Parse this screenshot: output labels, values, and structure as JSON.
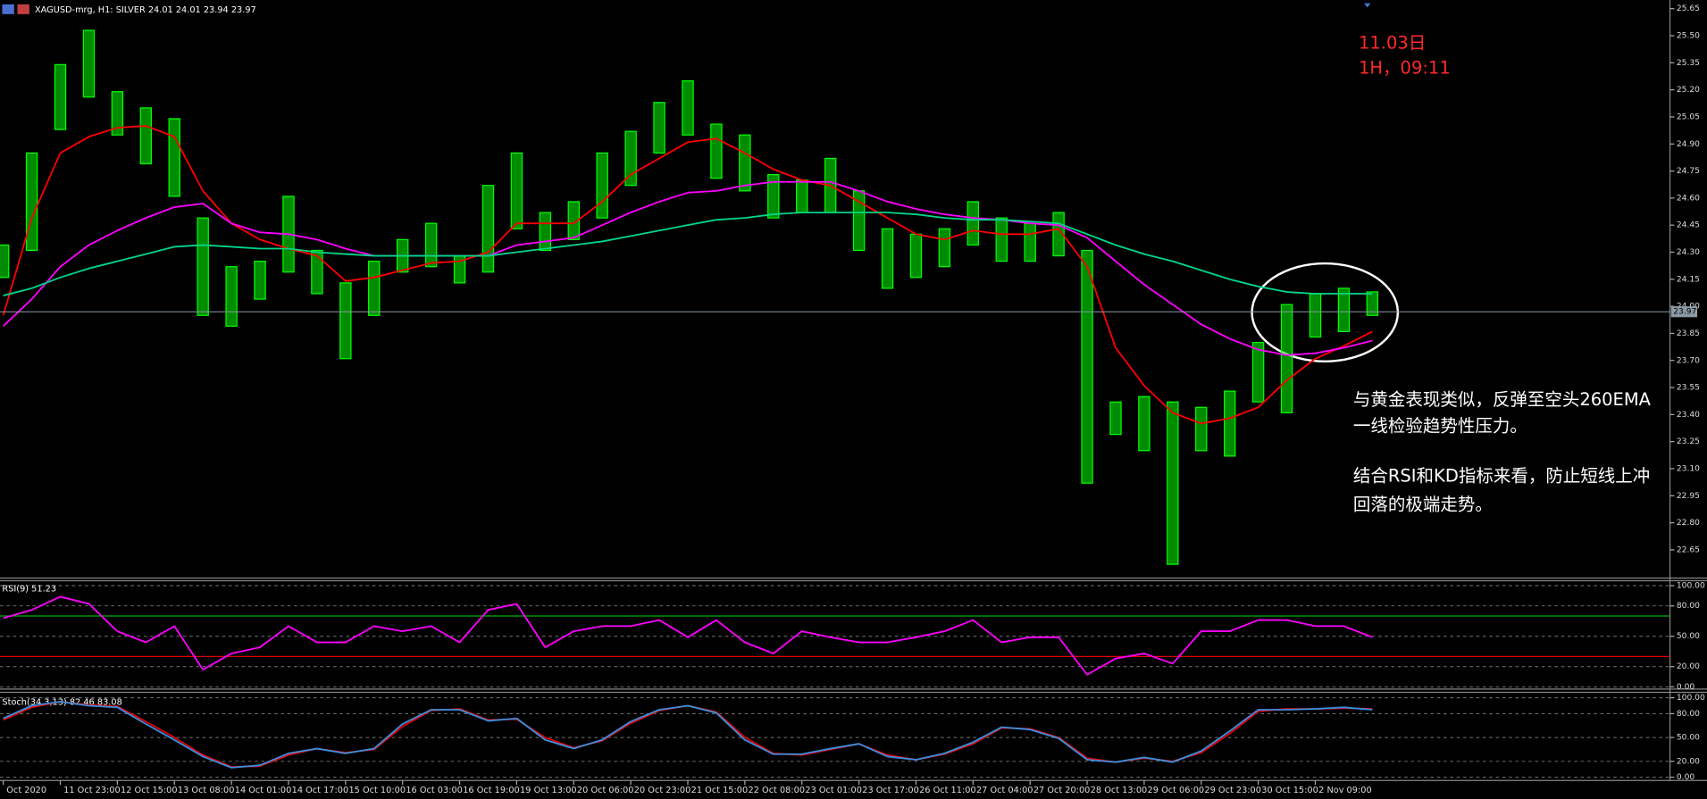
{
  "chart_data": [
    {
      "type": "price-range",
      "title": "XAGUSD-mrg, H1:  SILVER  24.01 24.01 23.94 23.97",
      "categories": [
        "Oct 2020",
        null,
        "11 Oct 23:00",
        null,
        "12 Oct 15:00",
        null,
        "13 Oct 08:00",
        null,
        "14 Oct 01:00",
        null,
        "14 Oct 17:00",
        null,
        "15 Oct 10:00",
        null,
        "16 Oct 03:00",
        null,
        "16 Oct 19:00",
        null,
        "19 Oct 13:00",
        null,
        "20 Oct 06:00",
        null,
        "20 Oct 23:00",
        null,
        "21 Oct 15:00",
        null,
        "22 Oct 08:00",
        null,
        "23 Oct 01:00",
        null,
        "23 Oct 17:00",
        null,
        "26 Oct 11:00",
        null,
        "27 Oct 04:00",
        null,
        "27 Oct 20:00",
        null,
        "28 Oct 13:00",
        null,
        "29 Oct 06:00",
        null,
        "29 Oct 23:00",
        null,
        "30 Oct 15:00",
        null,
        "2 Nov 09:00",
        null,
        null
      ],
      "high": [
        24.34,
        24.85,
        25.34,
        25.53,
        25.19,
        25.1,
        25.04,
        24.49,
        24.22,
        24.25,
        24.61,
        24.31,
        24.13,
        24.25,
        24.37,
        24.46,
        24.28,
        24.67,
        24.85,
        24.52,
        24.58,
        24.85,
        24.97,
        25.13,
        25.25,
        25.01,
        24.95,
        24.73,
        24.7,
        24.82,
        24.64,
        24.43,
        24.4,
        24.43,
        24.58,
        24.49,
        24.46,
        24.52,
        24.31,
        23.47,
        23.5,
        23.47,
        23.44,
        23.53,
        23.8,
        24.01,
        24.07,
        24.1,
        24.08
      ],
      "low": [
        24.16,
        24.31,
        24.98,
        25.16,
        24.95,
        24.79,
        24.61,
        23.95,
        23.89,
        24.04,
        24.19,
        24.07,
        23.71,
        23.95,
        24.19,
        24.22,
        24.13,
        24.19,
        24.43,
        24.31,
        24.37,
        24.49,
        24.67,
        24.85,
        24.95,
        24.71,
        24.64,
        24.49,
        24.52,
        24.52,
        24.31,
        24.1,
        24.16,
        24.22,
        24.34,
        24.25,
        24.25,
        24.28,
        23.02,
        23.29,
        23.2,
        22.57,
        23.2,
        23.17,
        23.47,
        23.41,
        23.83,
        23.86,
        23.95
      ],
      "color": "#00ff00",
      "lines": [
        {
          "color": "#ff0000",
          "values": [
            23.95,
            24.49,
            24.85,
            24.94,
            24.99,
            25.0,
            24.94,
            24.64,
            24.46,
            24.37,
            24.32,
            24.28,
            24.14,
            24.16,
            24.2,
            24.24,
            24.25,
            24.3,
            24.46,
            24.46,
            24.46,
            24.58,
            24.73,
            24.82,
            24.91,
            24.93,
            24.85,
            24.76,
            24.7,
            24.67,
            24.58,
            24.49,
            24.4,
            24.37,
            24.42,
            24.4,
            24.4,
            24.43,
            24.22,
            23.77,
            23.56,
            23.41,
            23.35,
            23.38,
            23.44,
            23.59,
            23.71,
            23.78,
            23.86
          ]
        },
        {
          "color": "#ff00ff",
          "values": [
            23.89,
            24.04,
            24.22,
            24.34,
            24.42,
            24.49,
            24.55,
            24.57,
            24.46,
            24.41,
            24.4,
            24.37,
            24.32,
            24.28,
            24.28,
            24.28,
            24.28,
            24.28,
            24.34,
            24.36,
            24.38,
            24.45,
            24.52,
            24.58,
            24.63,
            24.64,
            24.67,
            24.69,
            24.69,
            24.69,
            24.64,
            24.58,
            24.54,
            24.51,
            24.49,
            24.48,
            24.46,
            24.45,
            24.38,
            24.25,
            24.12,
            24.01,
            23.9,
            23.82,
            23.76,
            23.73,
            23.74,
            23.77,
            23.81
          ]
        },
        {
          "color": "#00d68a",
          "values": [
            24.06,
            24.1,
            24.16,
            24.21,
            24.25,
            24.29,
            24.33,
            24.34,
            24.33,
            24.32,
            24.32,
            24.3,
            24.29,
            24.28,
            24.28,
            24.28,
            24.28,
            24.28,
            24.3,
            24.32,
            24.34,
            24.36,
            24.39,
            24.42,
            24.45,
            24.48,
            24.49,
            24.51,
            24.52,
            24.52,
            24.52,
            24.52,
            24.51,
            24.49,
            24.48,
            24.48,
            24.47,
            24.46,
            24.4,
            24.34,
            24.29,
            24.25,
            24.2,
            24.15,
            24.11,
            24.08,
            24.07,
            24.07,
            24.07
          ]
        }
      ],
      "current_price": 23.97,
      "ylim": [
        22.5,
        25.68
      ],
      "yticks": [
        25.65,
        {
          "value": 25.5,
          "label": "25.50"
        },
        25.35,
        {
          "value": 25.2,
          "label": "25.20"
        },
        25.05,
        {
          "value": 24.9,
          "label": "24.90"
        },
        24.75,
        {
          "value": 24.6,
          "label": "24.60"
        },
        24.45,
        {
          "value": 24.3,
          "label": "24.30"
        },
        24.15,
        {
          "value": 24.0,
          "label": "24.00"
        },
        23.85,
        {
          "value": 23.7,
          "label": "23.70"
        },
        23.55,
        {
          "value": 23.4,
          "label": "23.40"
        },
        23.25,
        {
          "value": 23.1,
          "label": "23.10"
        },
        22.95,
        {
          "value": 22.8,
          "label": "22.80"
        },
        22.65
      ],
      "grid": false,
      "annotations": [
        {
          "text": "11.03日",
          "color": "#ff2a2a"
        },
        {
          "text": "1H，09:11",
          "color": "#ff2a2a"
        },
        {
          "text": "与黄金表现类似，反弹至空头260EMA",
          "color": "#ffffff"
        },
        {
          "text": "一线检验趋势性压力。",
          "color": "#ffffff"
        },
        {
          "text": "结合RSI和KD指标来看，防止短线上冲",
          "color": "#ffffff"
        },
        {
          "text": "回落的极端走势。",
          "color": "#ffffff"
        }
      ]
    },
    {
      "type": "line",
      "title": "RSI(9) 51.23",
      "series": [
        {
          "color": "#ff00ff",
          "values": [
            68,
            76,
            89,
            82,
            55,
            44,
            60,
            17,
            33,
            39,
            60,
            44,
            44,
            60,
            55,
            60,
            44,
            76,
            82,
            39,
            55,
            60,
            60,
            66,
            49,
            66,
            44,
            33,
            55,
            49,
            44,
            44,
            49,
            55,
            66,
            44,
            49,
            49,
            12,
            28,
            33,
            23,
            55,
            55,
            66,
            66,
            60,
            60,
            49
          ]
        }
      ],
      "ylim": [
        0,
        100
      ],
      "yticks": [
        {
          "value": 100,
          "label": "100.00"
        },
        {
          "value": 80,
          "label": "80.00"
        },
        {
          "value": 50,
          "label": "50.00"
        },
        {
          "value": 20,
          "label": "20.00"
        },
        {
          "value": 0,
          "label": "0.00"
        }
      ],
      "grid": true,
      "levels": [
        {
          "value": 70,
          "color": "#00b000"
        },
        {
          "value": 30,
          "color": "#e00000"
        }
      ]
    },
    {
      "type": "line",
      "title": "Stoch(34,3,13) 82.46 83.08",
      "series": [
        {
          "color": "#e00000",
          "values": [
            72,
            88,
            95,
            91,
            89,
            70,
            50,
            28,
            13,
            14,
            28,
            36,
            31,
            35,
            64,
            84,
            86,
            72,
            73,
            50,
            37,
            46,
            68,
            84,
            90,
            82,
            50,
            30,
            28,
            35,
            42,
            28,
            22,
            29,
            42,
            62,
            61,
            50,
            24,
            19,
            24,
            20,
            31,
            55,
            83,
            86,
            86,
            87,
            86
          ]
        },
        {
          "color": "#3b8fe0",
          "values": [
            74,
            90,
            95,
            90,
            88,
            67,
            47,
            26,
            12,
            15,
            30,
            36,
            30,
            36,
            67,
            85,
            85,
            71,
            74,
            47,
            36,
            47,
            70,
            85,
            90,
            81,
            47,
            29,
            29,
            36,
            42,
            26,
            22,
            30,
            44,
            63,
            60,
            49,
            22,
            19,
            25,
            19,
            33,
            58,
            85,
            85,
            86,
            88,
            85
          ]
        }
      ],
      "ylim": [
        0,
        100
      ],
      "yticks": [
        {
          "value": 100,
          "label": "100.00"
        },
        {
          "value": 80,
          "label": "80.00"
        },
        {
          "value": 50,
          "label": "50.00"
        },
        {
          "value": 20,
          "label": "20.00"
        },
        {
          "value": 0,
          "label": "0.00"
        }
      ],
      "grid": true
    }
  ]
}
